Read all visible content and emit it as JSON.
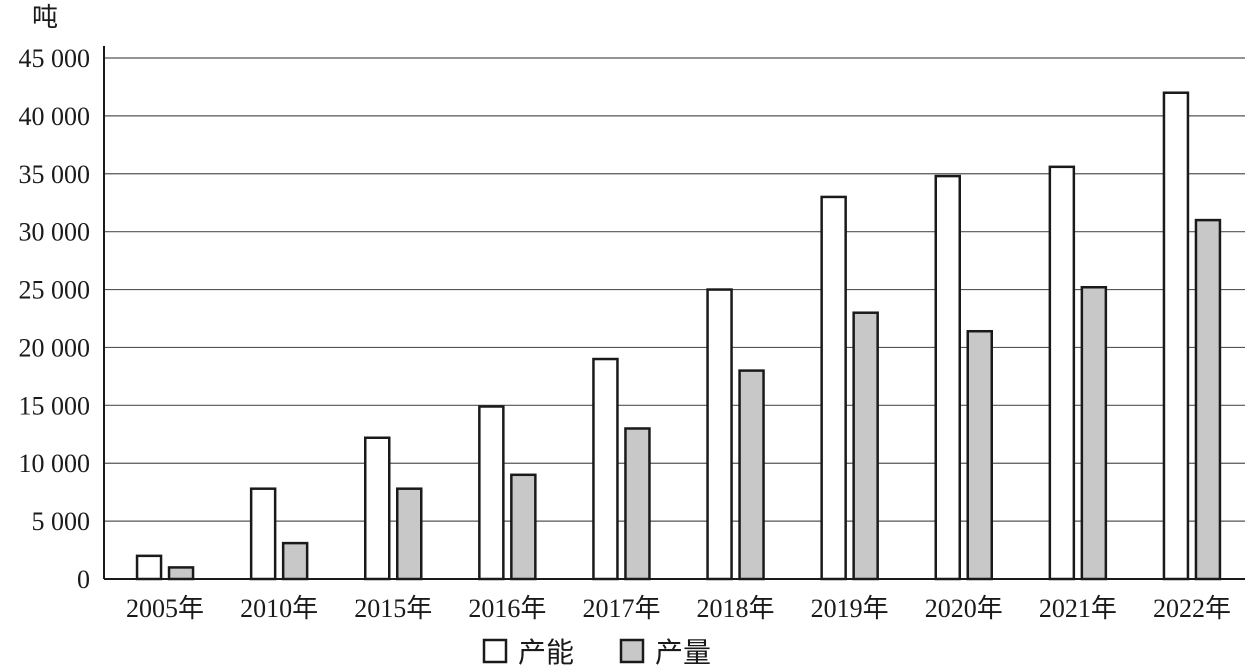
{
  "chart_data": {
    "type": "bar",
    "unit": "吨",
    "categories": [
      "2005年",
      "2010年",
      "2015年",
      "2016年",
      "2017年",
      "2018年",
      "2019年",
      "2020年",
      "2021年",
      "2022年"
    ],
    "series": [
      {
        "name": "产能",
        "values": [
          2000,
          7800,
          12200,
          14900,
          19000,
          25000,
          33000,
          34800,
          35600,
          42000
        ],
        "color": "#ffffff"
      },
      {
        "name": "产量",
        "values": [
          1000,
          3100,
          7800,
          9000,
          13000,
          18000,
          23000,
          21400,
          25200,
          31000
        ],
        "color": "#c8c8c8"
      }
    ],
    "ylim": [
      0,
      45000
    ],
    "yticks": [
      0,
      5000,
      10000,
      15000,
      20000,
      25000,
      30000,
      35000,
      40000,
      45000
    ],
    "ytick_labels": [
      "0",
      "5 000",
      "10 000",
      "15 000",
      "20 000",
      "25 000",
      "30 000",
      "35 000",
      "40 000",
      "45 000"
    ],
    "grid": true,
    "legend_position": "bottom-center"
  }
}
